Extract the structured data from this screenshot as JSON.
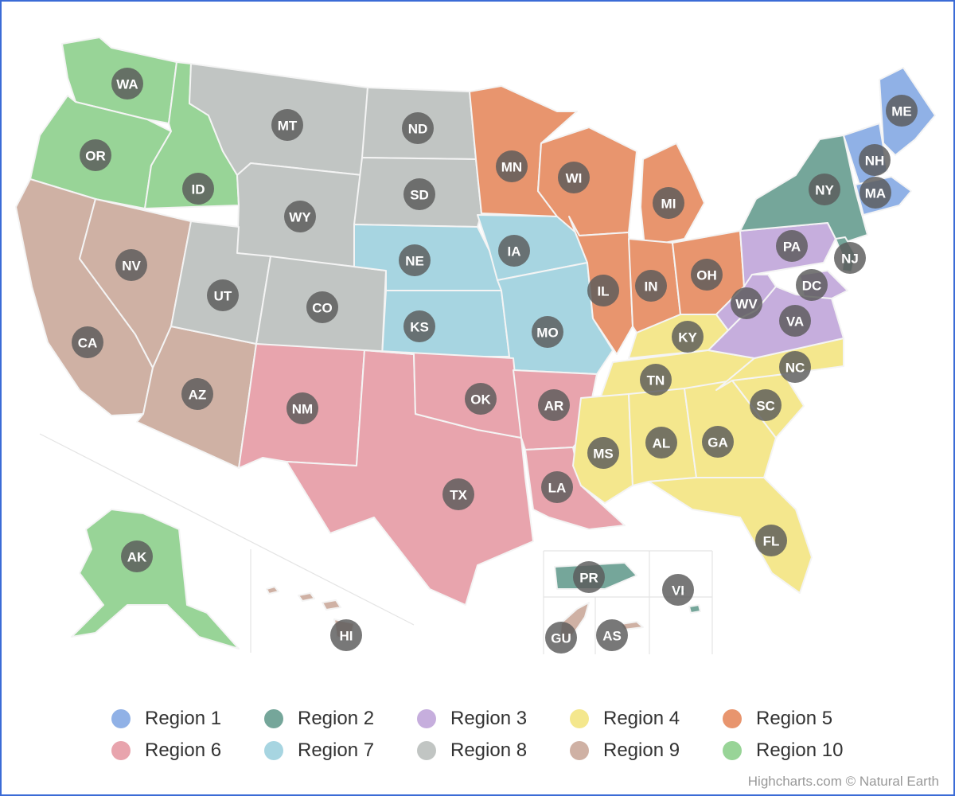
{
  "legend": {
    "items": [
      {
        "label": "Region 1",
        "color": "#90b1e6"
      },
      {
        "label": "Region 2",
        "color": "#75a69a"
      },
      {
        "label": "Region 3",
        "color": "#c6aedd"
      },
      {
        "label": "Region 4",
        "color": "#f4e78d"
      },
      {
        "label": "Region 5",
        "color": "#e8956e"
      },
      {
        "label": "Region 6",
        "color": "#e8a4ad"
      },
      {
        "label": "Region 7",
        "color": "#a7d5e1"
      },
      {
        "label": "Region 8",
        "color": "#c1c5c3"
      },
      {
        "label": "Region 9",
        "color": "#cfb1a4"
      },
      {
        "label": "Region 10",
        "color": "#98d497"
      }
    ]
  },
  "states": [
    {
      "code": "WA",
      "region": 10
    },
    {
      "code": "OR",
      "region": 10
    },
    {
      "code": "ID",
      "region": 10
    },
    {
      "code": "AK",
      "region": 10
    },
    {
      "code": "CA",
      "region": 9
    },
    {
      "code": "NV",
      "region": 9
    },
    {
      "code": "AZ",
      "region": 9
    },
    {
      "code": "HI",
      "region": 9
    },
    {
      "code": "GU",
      "region": 9
    },
    {
      "code": "AS",
      "region": 9
    },
    {
      "code": "MT",
      "region": 8
    },
    {
      "code": "WY",
      "region": 8
    },
    {
      "code": "UT",
      "region": 8
    },
    {
      "code": "CO",
      "region": 8
    },
    {
      "code": "ND",
      "region": 8
    },
    {
      "code": "SD",
      "region": 8
    },
    {
      "code": "NE",
      "region": 7
    },
    {
      "code": "KS",
      "region": 7
    },
    {
      "code": "IA",
      "region": 7
    },
    {
      "code": "MO",
      "region": 7
    },
    {
      "code": "NM",
      "region": 6
    },
    {
      "code": "TX",
      "region": 6
    },
    {
      "code": "OK",
      "region": 6
    },
    {
      "code": "AR",
      "region": 6
    },
    {
      "code": "LA",
      "region": 6
    },
    {
      "code": "MN",
      "region": 5
    },
    {
      "code": "WI",
      "region": 5
    },
    {
      "code": "MI",
      "region": 5
    },
    {
      "code": "IL",
      "region": 5
    },
    {
      "code": "IN",
      "region": 5
    },
    {
      "code": "OH",
      "region": 5
    },
    {
      "code": "KY",
      "region": 4
    },
    {
      "code": "TN",
      "region": 4
    },
    {
      "code": "MS",
      "region": 4
    },
    {
      "code": "AL",
      "region": 4
    },
    {
      "code": "GA",
      "region": 4
    },
    {
      "code": "FL",
      "region": 4
    },
    {
      "code": "SC",
      "region": 4
    },
    {
      "code": "NC",
      "region": 4
    },
    {
      "code": "PA",
      "region": 3
    },
    {
      "code": "WV",
      "region": 3
    },
    {
      "code": "VA",
      "region": 3
    },
    {
      "code": "DC",
      "region": 3
    },
    {
      "code": "NY",
      "region": 2
    },
    {
      "code": "NJ",
      "region": 2
    },
    {
      "code": "PR",
      "region": 2
    },
    {
      "code": "VI",
      "region": 2
    },
    {
      "code": "ME",
      "region": 1
    },
    {
      "code": "NH",
      "region": 1
    },
    {
      "code": "MA",
      "region": 1
    }
  ],
  "credits": "Highcharts.com © Natural Earth"
}
